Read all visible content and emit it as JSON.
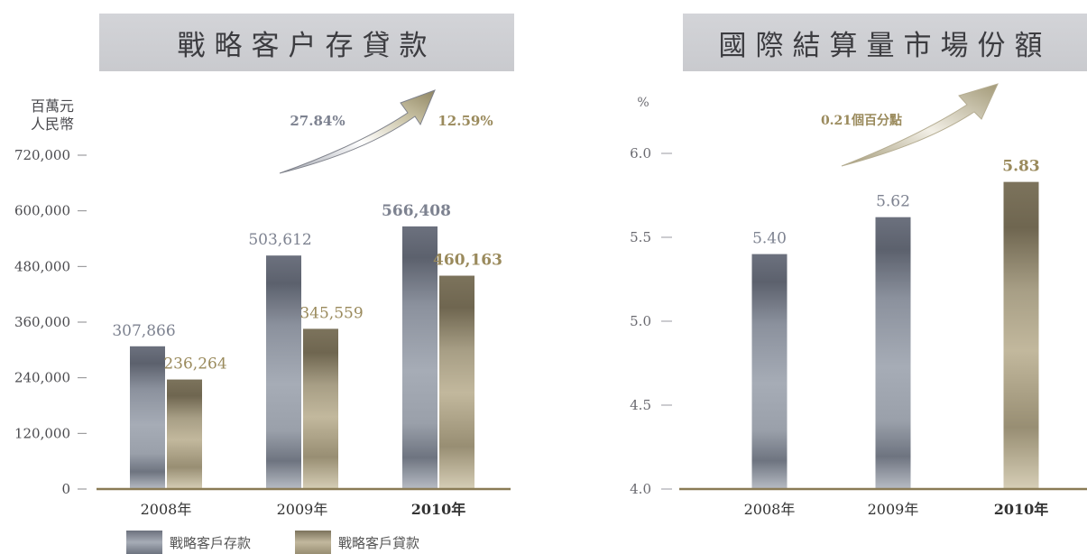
{
  "chart_data": [
    {
      "type": "bar",
      "title": "戰略客户存貸款",
      "unit_label": [
        "百萬元",
        "人民幣"
      ],
      "categories": [
        "2008年",
        "2009年",
        "2010年"
      ],
      "highlight_category": "2010年",
      "ylim": [
        0,
        720000
      ],
      "yticks": [
        "0",
        "120,000",
        "240,000",
        "360,000",
        "480,000",
        "600,000",
        "720,000"
      ],
      "series": [
        {
          "name": "戰略客戶存款",
          "values": [
            307866,
            503612,
            566408
          ],
          "labels": [
            "307,866",
            "503,612",
            "566,408"
          ],
          "color": "#7d8290"
        },
        {
          "name": "戰略客戶貸款",
          "values": [
            236264,
            345559,
            460163
          ],
          "labels": [
            "236,264",
            "345,559",
            "460,163"
          ],
          "color": "#9c9278"
        }
      ],
      "annotations": [
        {
          "text": "27.84%",
          "color": "#7d8290"
        },
        {
          "text": "12.59%",
          "color": "#9a8a5c"
        }
      ],
      "legend": "bottom"
    },
    {
      "type": "bar",
      "title": "國際結算量市場份額",
      "unit_label": [
        "%"
      ],
      "categories": [
        "2008年",
        "2009年",
        "2010年"
      ],
      "highlight_category": "2010年",
      "ylim": [
        4.0,
        6.0
      ],
      "yticks": [
        "4.0",
        "4.5",
        "5.0",
        "5.5",
        "6.0"
      ],
      "series": [
        {
          "values": [
            5.4,
            5.62,
            5.83
          ],
          "labels": [
            "5.40",
            "5.62",
            "5.83"
          ],
          "label_colors": [
            "#7d8290",
            "#7d8290",
            "#9a8a5c"
          ]
        }
      ],
      "annotations": [
        {
          "text": "0.21個百分點",
          "color": "#9a8a5c"
        }
      ]
    }
  ]
}
